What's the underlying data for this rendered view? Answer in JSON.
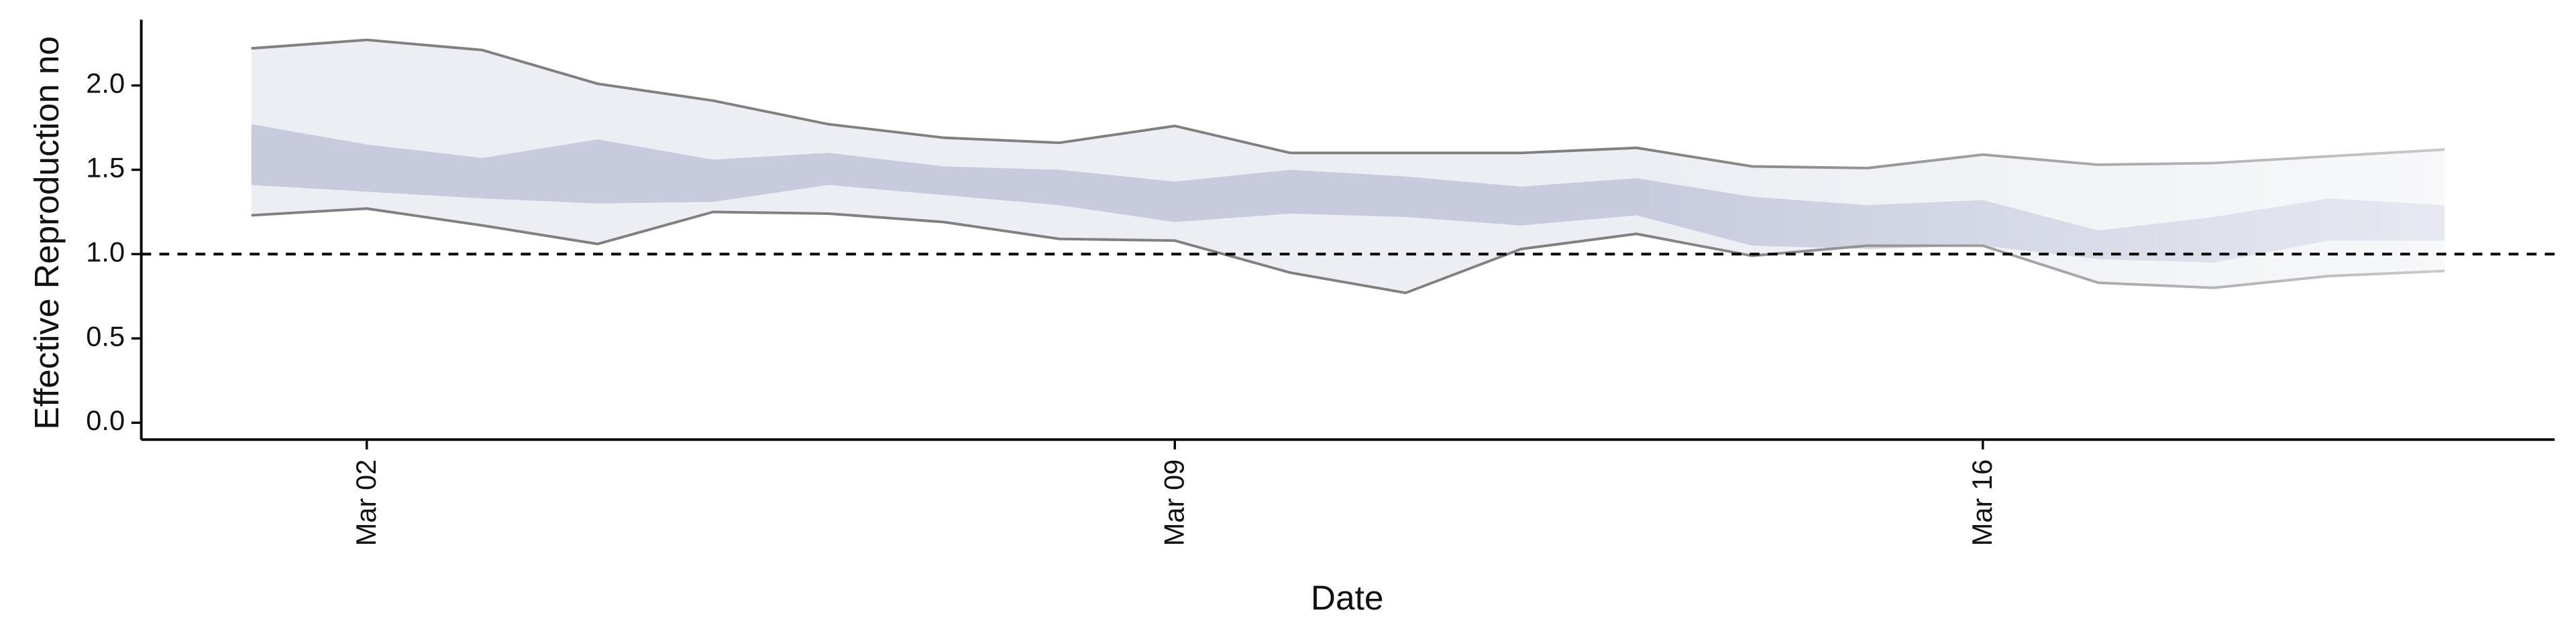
{
  "chart_data": {
    "type": "band",
    "x_label": "Date",
    "y_label": "Effective Reproduction no",
    "x": [
      "Mar 01",
      "Mar 02",
      "Mar 03",
      "Mar 04",
      "Mar 05",
      "Mar 06",
      "Mar 07",
      "Mar 08",
      "Mar 09",
      "Mar 10",
      "Mar 11",
      "Mar 12",
      "Mar 13",
      "Mar 14",
      "Mar 15",
      "Mar 16",
      "Mar 17",
      "Mar 18",
      "Mar 19",
      "Mar 20"
    ],
    "xticks": [
      "Mar 02",
      "Mar 09",
      "Mar 16"
    ],
    "outer_upper": [
      2.22,
      2.27,
      2.21,
      2.01,
      1.91,
      1.77,
      1.69,
      1.66,
      1.76,
      1.6,
      1.6,
      1.6,
      1.63,
      1.52,
      1.51,
      1.59,
      1.53,
      1.54,
      1.58,
      1.62
    ],
    "outer_lower": [
      1.23,
      1.27,
      1.17,
      1.06,
      1.25,
      1.24,
      1.19,
      1.09,
      1.08,
      0.89,
      0.77,
      1.03,
      1.12,
      0.99,
      1.05,
      1.05,
      0.83,
      0.8,
      0.87,
      0.9
    ],
    "inner_upper": [
      1.77,
      1.65,
      1.57,
      1.68,
      1.56,
      1.6,
      1.52,
      1.5,
      1.43,
      1.5,
      1.46,
      1.4,
      1.45,
      1.34,
      1.29,
      1.32,
      1.14,
      1.22,
      1.33,
      1.29
    ],
    "inner_lower": [
      1.41,
      1.37,
      1.33,
      1.3,
      1.31,
      1.41,
      1.35,
      1.29,
      1.19,
      1.24,
      1.22,
      1.17,
      1.23,
      1.05,
      1.03,
      1.05,
      0.97,
      0.95,
      1.08,
      1.08
    ],
    "outer_color": "#eceef3",
    "inner_color": "#c7cbdd",
    "line_color": "#808080",
    "reference_line": 1,
    "ylim": [
      -0.1,
      2.39
    ],
    "yticks": [
      {
        "value": 0,
        "label": "0.0"
      },
      0.5,
      {
        "value": 1,
        "label": "1.0"
      },
      1.5,
      {
        "value": 2,
        "label": "2.0"
      }
    ],
    "grid": false
  }
}
